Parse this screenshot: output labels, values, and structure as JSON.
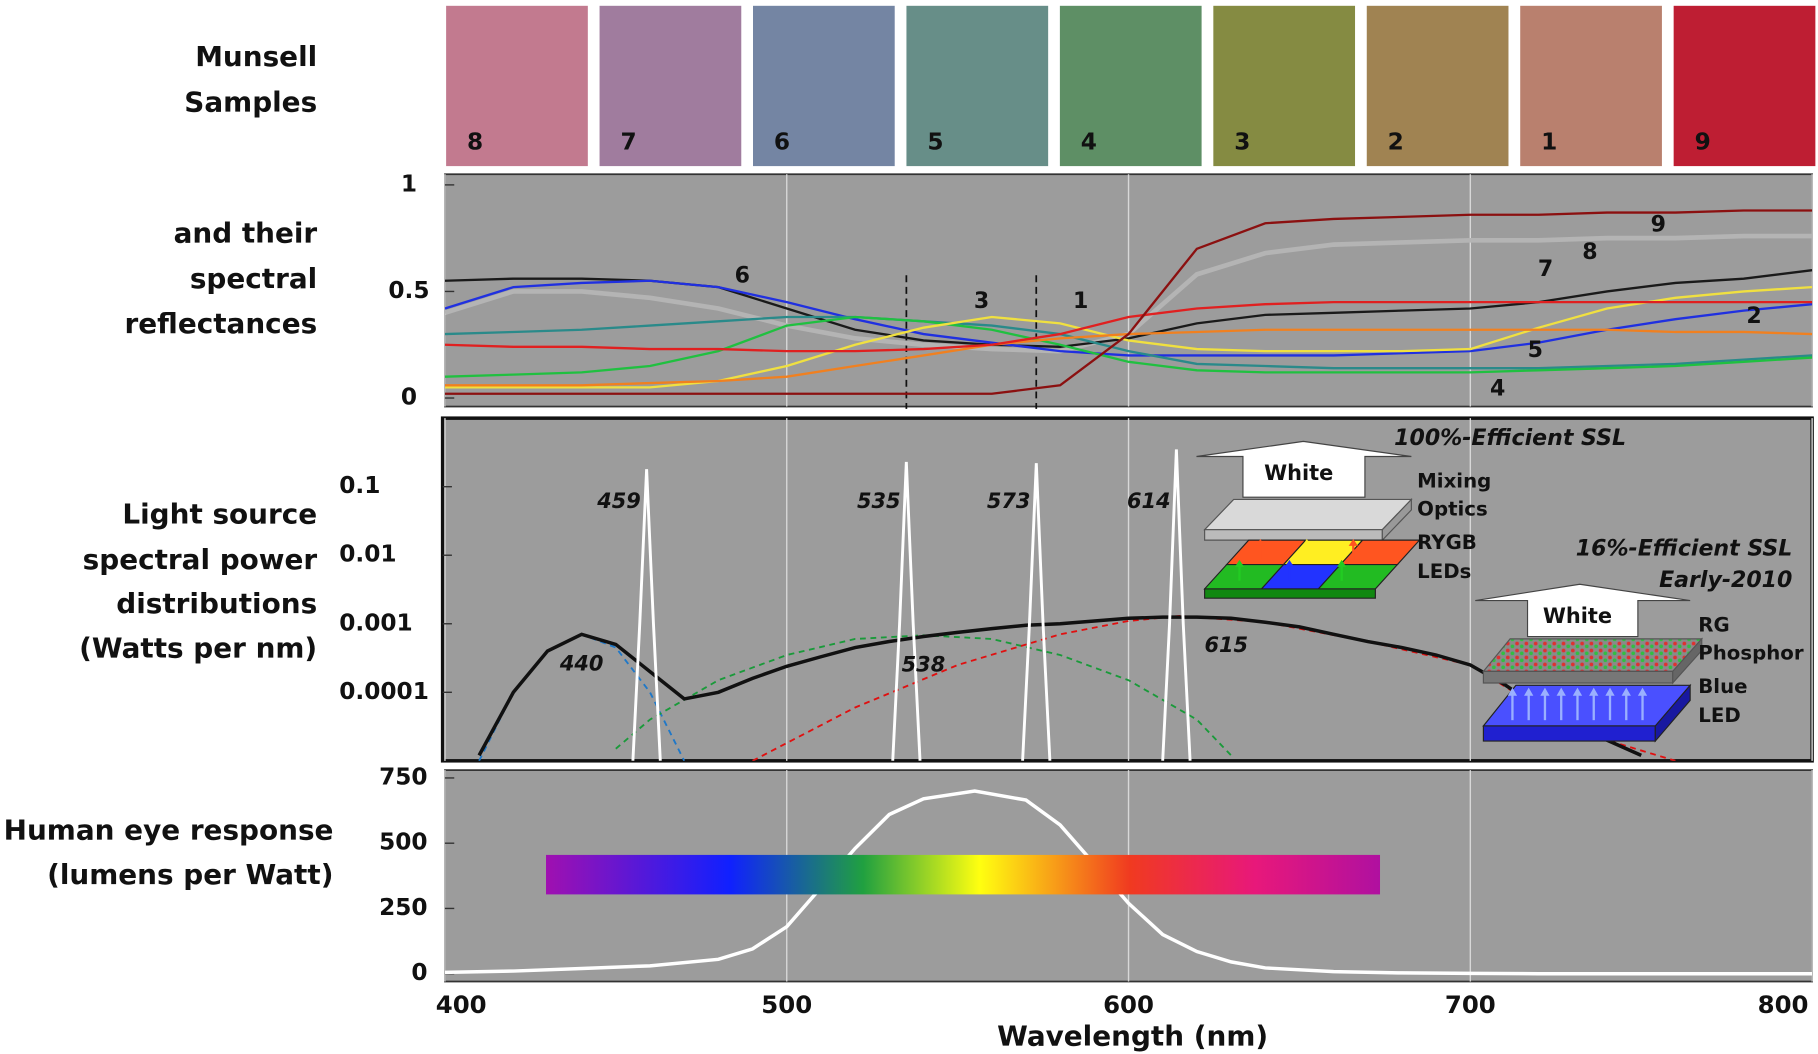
{
  "chart_data": [
    {
      "type": "line",
      "title": [
        "Munsell",
        "Samples"
      ],
      "ylabel": [
        "and their",
        "spectral",
        "reflectances"
      ],
      "x": [
        400,
        420,
        440,
        460,
        480,
        500,
        520,
        540,
        560,
        580,
        600,
        620,
        640,
        660,
        680,
        700,
        720,
        740,
        760,
        780,
        800
      ],
      "xlim": [
        400,
        800
      ],
      "xticks": [
        400,
        500,
        600,
        700,
        800
      ],
      "ylim": [
        -0.04,
        1.05
      ],
      "yticks": [
        0,
        0.5,
        1
      ],
      "reference_lines": [
        535,
        573
      ],
      "series": [
        {
          "name": "8",
          "color": "#b4b4b4",
          "swatch": "#c27a8f",
          "values": [
            0.4,
            0.5,
            0.5,
            0.47,
            0.42,
            0.34,
            0.28,
            0.25,
            0.23,
            0.22,
            0.3,
            0.58,
            0.68,
            0.72,
            0.73,
            0.74,
            0.74,
            0.75,
            0.75,
            0.76,
            0.76
          ]
        },
        {
          "name": "7",
          "color": "#1a1a1a",
          "swatch": "#a07c9e",
          "values": [
            0.55,
            0.56,
            0.56,
            0.55,
            0.52,
            0.42,
            0.32,
            0.27,
            0.25,
            0.24,
            0.28,
            0.35,
            0.39,
            0.4,
            0.41,
            0.42,
            0.45,
            0.5,
            0.54,
            0.56,
            0.6
          ]
        },
        {
          "name": "6",
          "color": "#2030e0",
          "swatch": "#7485a3",
          "values": [
            0.42,
            0.52,
            0.54,
            0.55,
            0.52,
            0.45,
            0.37,
            0.3,
            0.26,
            0.22,
            0.2,
            0.2,
            0.2,
            0.2,
            0.21,
            0.22,
            0.26,
            0.32,
            0.37,
            0.41,
            0.44
          ]
        },
        {
          "name": "5",
          "color": "#2a8a8a",
          "swatch": "#678e88",
          "values": [
            0.3,
            0.31,
            0.32,
            0.34,
            0.36,
            0.38,
            0.38,
            0.36,
            0.34,
            0.3,
            0.22,
            0.16,
            0.15,
            0.14,
            0.14,
            0.14,
            0.14,
            0.15,
            0.16,
            0.18,
            0.2
          ]
        },
        {
          "name": "4",
          "color": "#20c040",
          "swatch": "#5e8f65",
          "values": [
            0.1,
            0.11,
            0.12,
            0.15,
            0.22,
            0.34,
            0.38,
            0.36,
            0.32,
            0.25,
            0.17,
            0.13,
            0.12,
            0.12,
            0.12,
            0.12,
            0.13,
            0.14,
            0.15,
            0.17,
            0.19
          ]
        },
        {
          "name": "3",
          "color": "#f0e040",
          "swatch": "#858b42",
          "values": [
            0.05,
            0.05,
            0.05,
            0.05,
            0.08,
            0.15,
            0.25,
            0.33,
            0.38,
            0.35,
            0.27,
            0.23,
            0.22,
            0.22,
            0.22,
            0.23,
            0.33,
            0.42,
            0.47,
            0.5,
            0.52
          ]
        },
        {
          "name": "2",
          "color": "#f08020",
          "swatch": "#a08352",
          "values": [
            0.06,
            0.06,
            0.06,
            0.07,
            0.08,
            0.1,
            0.15,
            0.2,
            0.25,
            0.28,
            0.3,
            0.31,
            0.32,
            0.32,
            0.32,
            0.32,
            0.32,
            0.32,
            0.31,
            0.31,
            0.3
          ]
        },
        {
          "name": "1",
          "color": "#e02020",
          "swatch": "#b9806e",
          "values": [
            0.25,
            0.24,
            0.24,
            0.23,
            0.23,
            0.22,
            0.22,
            0.23,
            0.25,
            0.3,
            0.38,
            0.42,
            0.44,
            0.45,
            0.45,
            0.45,
            0.45,
            0.45,
            0.45,
            0.45,
            0.45
          ]
        },
        {
          "name": "9",
          "color": "#8b1010",
          "swatch": "#be1e33",
          "values": [
            0.02,
            0.02,
            0.02,
            0.02,
            0.02,
            0.02,
            0.02,
            0.02,
            0.02,
            0.06,
            0.3,
            0.7,
            0.82,
            0.84,
            0.85,
            0.86,
            0.86,
            0.87,
            0.87,
            0.88,
            0.88
          ]
        }
      ]
    },
    {
      "type": "line",
      "ylabel": [
        "Light source",
        "spectral power",
        "distributions",
        "(Watts per nm)"
      ],
      "log_scale": true,
      "xlim": [
        400,
        800
      ],
      "xticks": [
        400,
        500,
        600,
        700,
        800
      ],
      "ylim": [
        1e-05,
        1
      ],
      "yticks": [
        0.0001,
        0.001,
        0.01,
        0.1
      ],
      "series": [
        {
          "name": "440",
          "color": "#1f78c8",
          "dashed": true,
          "x": [
            410,
            420,
            430,
            440,
            450,
            460,
            470
          ],
          "values": [
            1e-05,
            0.0001,
            0.0004,
            0.0007,
            0.00045,
            0.0001,
            1e-05
          ]
        },
        {
          "name": "538",
          "color": "#1a9a3a",
          "dashed": true,
          "x": [
            450,
            460,
            480,
            500,
            520,
            540,
            560,
            580,
            600,
            620,
            630
          ],
          "values": [
            1.5e-05,
            4e-05,
            0.00015,
            0.00035,
            0.0006,
            0.00068,
            0.0006,
            0.00035,
            0.00015,
            4e-05,
            1.2e-05
          ]
        },
        {
          "name": "615",
          "color": "#e01010",
          "dashed": true,
          "x": [
            490,
            520,
            550,
            580,
            600,
            615,
            640,
            670,
            700,
            720,
            740,
            760
          ],
          "values": [
            1e-05,
            6e-05,
            0.00025,
            0.0007,
            0.0011,
            0.0013,
            0.00105,
            0.00055,
            0.00025,
            6e-05,
            2e-05,
            1e-05
          ]
        },
        {
          "color": "#111111",
          "x": [
            410,
            420,
            430,
            440,
            450,
            460,
            470,
            480,
            490,
            500,
            510,
            520,
            530,
            540,
            550,
            560,
            570,
            580,
            590,
            600,
            610,
            620,
            630,
            640,
            650,
            660,
            670,
            680,
            690,
            700,
            710,
            720,
            730,
            740,
            750
          ],
          "values": [
            1.2e-05,
            0.0001,
            0.0004,
            0.0007,
            0.0005,
            0.0002,
            8e-05,
            0.0001,
            0.00016,
            0.00024,
            0.00033,
            0.00045,
            0.00055,
            0.00065,
            0.00075,
            0.00085,
            0.00095,
            0.001,
            0.0011,
            0.0012,
            0.00125,
            0.00125,
            0.0012,
            0.00105,
            0.0009,
            0.0007,
            0.00055,
            0.00045,
            0.00035,
            0.00025,
            0.00013,
            6e-05,
            3.5e-05,
            2e-05,
            1.2e-05
          ]
        },
        {
          "name": "459",
          "color": "#ffffff",
          "x": [
            455,
            457,
            459,
            461,
            463
          ],
          "values": [
            1e-05,
            0.001,
            0.18,
            0.001,
            1e-05
          ]
        },
        {
          "name": "535",
          "color": "#ffffff",
          "x": [
            531,
            533,
            535,
            537,
            539
          ],
          "values": [
            1e-05,
            0.001,
            0.23,
            0.001,
            1e-05
          ]
        },
        {
          "name": "573",
          "color": "#ffffff",
          "x": [
            569,
            571,
            573,
            575,
            577
          ],
          "values": [
            1e-05,
            0.001,
            0.22,
            0.001,
            1e-05
          ]
        },
        {
          "name": "614",
          "color": "#ffffff",
          "x": [
            610,
            612,
            614,
            616,
            618
          ],
          "values": [
            1e-05,
            0.001,
            0.35,
            0.001,
            1e-05
          ]
        }
      ],
      "annotations": [
        "100%-Efficient SSL",
        "White",
        "Mixing",
        "Optics",
        "RYGB",
        "LEDs",
        "16%-Efficient SSL",
        "Early-2010",
        "White",
        "RG",
        "Phosphor",
        "Blue",
        "LED"
      ]
    },
    {
      "type": "line",
      "ylabel": [
        "Human eye response",
        "(lumens per Watt)"
      ],
      "xlabel": "Wavelength (nm)",
      "x": [
        400,
        420,
        440,
        460,
        480,
        490,
        500,
        510,
        520,
        530,
        540,
        555,
        570,
        580,
        590,
        600,
        610,
        620,
        630,
        640,
        660,
        680,
        700,
        720,
        800
      ],
      "values": [
        5,
        10,
        20,
        30,
        55,
        95,
        180,
        330,
        480,
        610,
        670,
        700,
        665,
        570,
        420,
        270,
        150,
        85,
        45,
        22,
        8,
        3,
        1,
        0,
        0
      ],
      "color": "#ffffff",
      "xlim": [
        400,
        800
      ],
      "xticks": [
        400,
        500,
        600,
        700,
        800
      ],
      "ylim": [
        -30,
        780
      ],
      "yticks": [
        0,
        250,
        500,
        750
      ]
    }
  ]
}
